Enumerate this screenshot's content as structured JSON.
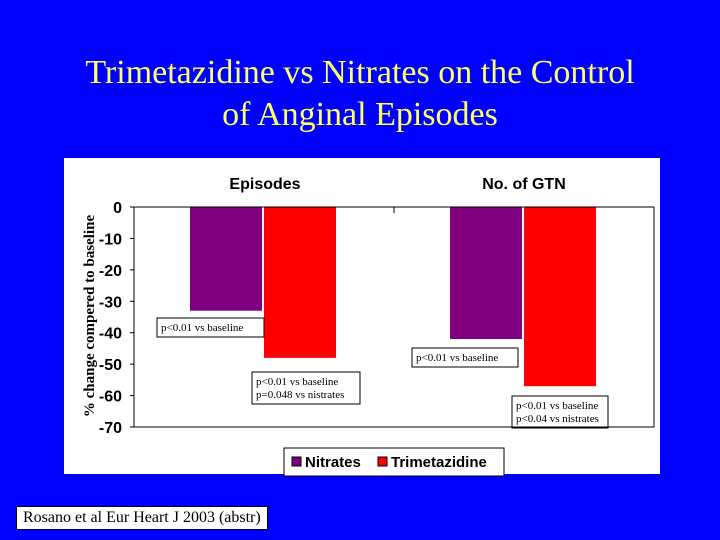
{
  "slide": {
    "title_line1": "Trimetazidine vs Nitrates on the Control",
    "title_line2": "of Anginal Episodes",
    "citation": "Rosano et al Eur Heart J 2003 (abstr)"
  },
  "colors": {
    "background": "#0000ff",
    "title": "#ffff66",
    "nitrates": "#800080",
    "trimetazidine": "#ff0000"
  },
  "chart_data": {
    "type": "bar",
    "categories": [
      "Episodes",
      "No. of GTN"
    ],
    "series": [
      {
        "name": "Nitrates",
        "values": [
          -33,
          -42
        ]
      },
      {
        "name": "Trimetazidine",
        "values": [
          -48,
          -57
        ]
      }
    ],
    "ylabel": "% change compered to baseline",
    "ylim": [
      -70,
      0
    ],
    "yticks": [
      "0",
      "-10",
      "-20",
      "-30",
      "-40",
      "-50",
      "-60",
      "-70"
    ],
    "legend": "bottom",
    "annotations": [
      {
        "text": [
          "p<0.01 vs baseline"
        ]
      },
      {
        "text": [
          "p<0.01 vs baseline",
          "p=0.048 vs nistrates"
        ]
      },
      {
        "text": [
          "p<0.01 vs baseline"
        ]
      },
      {
        "text": [
          "p<0.01 vs baseline",
          "p<0.04 vs nistrates"
        ]
      }
    ]
  }
}
